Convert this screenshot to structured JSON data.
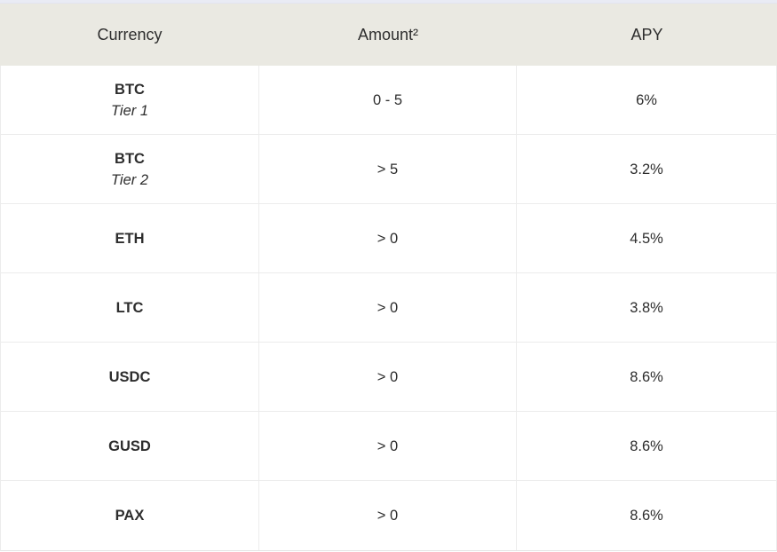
{
  "page": {
    "top_strip_color": "#e9ebf4",
    "background_color": "#ffffff"
  },
  "table": {
    "colors": {
      "header_background": "#eae9e2",
      "row_background": "#ffffff",
      "border": "#ececec",
      "text": "#2d2d2d"
    },
    "columns": [
      {
        "label": "Currency"
      },
      {
        "label": "Amount²"
      },
      {
        "label": "APY"
      }
    ],
    "rows": [
      {
        "currency": "BTC",
        "tier": "Tier 1",
        "amount": "0 - 5",
        "apy": "6%"
      },
      {
        "currency": "BTC",
        "tier": "Tier 2",
        "amount": "> 5",
        "apy": "3.2%"
      },
      {
        "currency": "ETH",
        "tier": "",
        "amount": "> 0",
        "apy": "4.5%"
      },
      {
        "currency": "LTC",
        "tier": "",
        "amount": "> 0",
        "apy": "3.8%"
      },
      {
        "currency": "USDC",
        "tier": "",
        "amount": "> 0",
        "apy": "8.6%"
      },
      {
        "currency": "GUSD",
        "tier": "",
        "amount": "> 0",
        "apy": "8.6%"
      },
      {
        "currency": "PAX",
        "tier": "",
        "amount": "> 0",
        "apy": "8.6%"
      }
    ]
  }
}
